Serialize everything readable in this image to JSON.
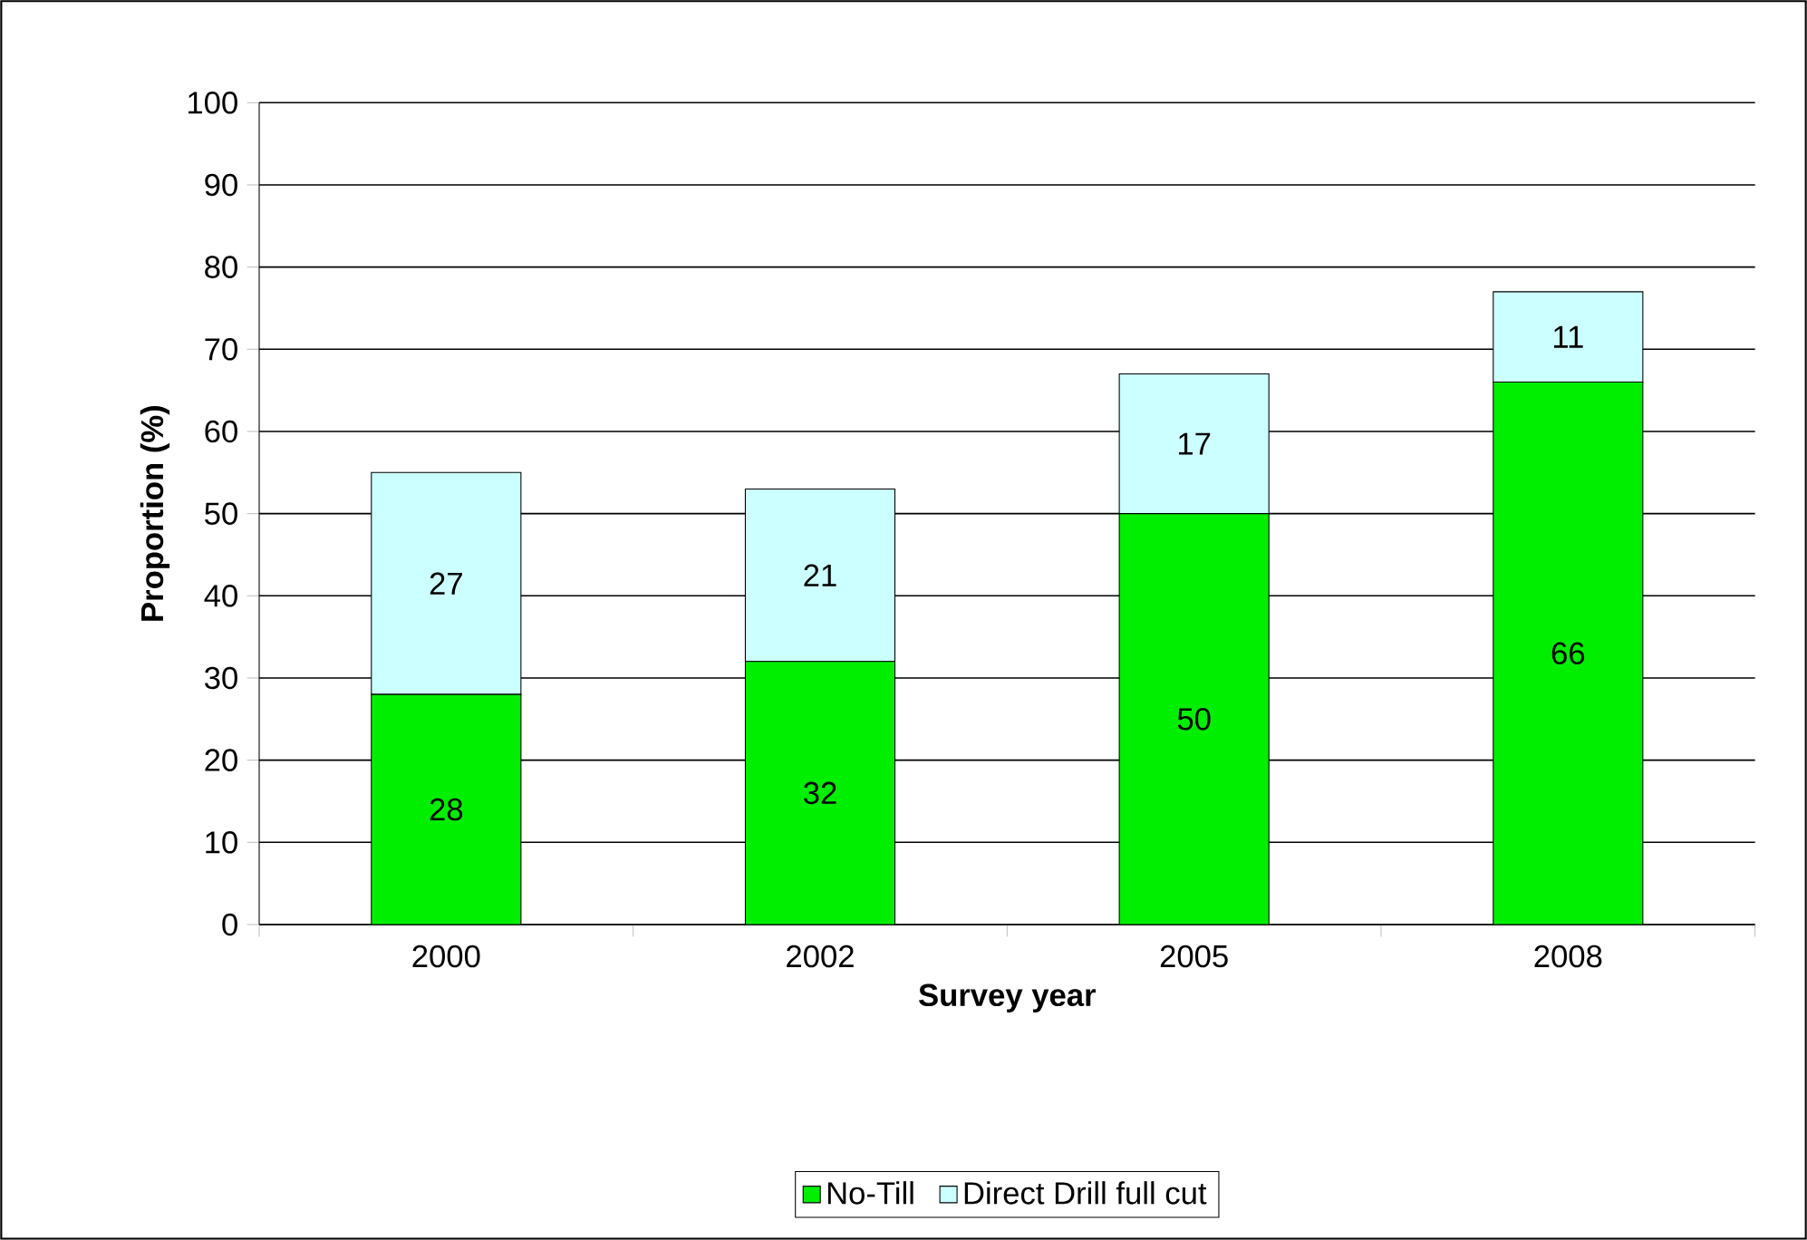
{
  "chart_data": {
    "type": "bar",
    "stacked": true,
    "xlabel": "Survey year",
    "ylabel": "Proportion (%)",
    "categories": [
      "2000",
      "2002",
      "2005",
      "2008"
    ],
    "series": [
      {
        "name": "No-Till",
        "color": "#00ee00",
        "values": [
          28,
          32,
          50,
          66
        ]
      },
      {
        "name": "Direct Drill full cut",
        "color": "#ccffff",
        "values": [
          27,
          21,
          17,
          11
        ]
      }
    ],
    "ylim": [
      0,
      100
    ],
    "yticks": [
      0,
      10,
      20,
      30,
      40,
      50,
      60,
      70,
      80,
      90,
      100
    ],
    "grid": "y",
    "legend": "bottom",
    "data_labels": true
  }
}
